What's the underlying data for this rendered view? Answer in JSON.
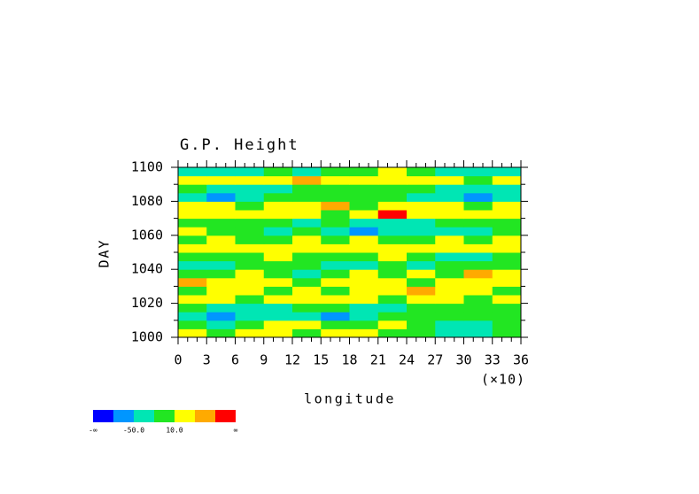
{
  "chart_data": {
    "type": "contour",
    "title": "G.P. Height",
    "xlabel": "longitude",
    "ylabel": "DAY",
    "x_multiplier_label": "(×10)",
    "xlim": [
      0,
      36
    ],
    "ylim": [
      1000,
      1100
    ],
    "xticks": [
      0,
      3,
      6,
      9,
      12,
      15,
      18,
      21,
      24,
      27,
      30,
      33,
      36
    ],
    "yticks": [
      1000,
      1020,
      1040,
      1060,
      1080,
      1100
    ],
    "x": [
      1.5,
      4.5,
      7.5,
      10.5,
      13.5,
      16.5,
      19.5,
      22.5,
      25.5,
      28.5,
      31.5,
      34.5
    ],
    "y": [
      1002.5,
      1007.5,
      1012.5,
      1017.5,
      1022.5,
      1027.5,
      1032.5,
      1037.5,
      1042.5,
      1047.5,
      1052.5,
      1057.5,
      1062.5,
      1067.5,
      1072.5,
      1077.5,
      1082.5,
      1087.5,
      1092.5,
      1097.5
    ],
    "z": [
      [
        15,
        -5,
        20,
        25,
        -5,
        15,
        20,
        -10,
        -5,
        -30,
        -40,
        -20
      ],
      [
        -5,
        -30,
        -10,
        15,
        20,
        -5,
        -10,
        15,
        -5,
        -25,
        -35,
        -5
      ],
      [
        -40,
        -55,
        -35,
        -30,
        -45,
        -60,
        -35,
        -5,
        -10,
        5,
        -5,
        -20
      ],
      [
        -10,
        -25,
        -35,
        -40,
        -20,
        -5,
        -30,
        -40,
        -15,
        -5,
        -10,
        5
      ],
      [
        20,
        15,
        -5,
        25,
        30,
        20,
        15,
        -5,
        20,
        25,
        -5,
        15
      ],
      [
        -5,
        20,
        25,
        -5,
        15,
        -10,
        20,
        25,
        45,
        15,
        20,
        -5
      ],
      [
        55,
        25,
        20,
        30,
        -5,
        15,
        25,
        20,
        -5,
        20,
        30,
        25
      ],
      [
        -10,
        -5,
        20,
        -15,
        -25,
        -5,
        20,
        -10,
        15,
        -5,
        55,
        20
      ],
      [
        -30,
        -40,
        -20,
        -5,
        -10,
        -35,
        -25,
        -5,
        -30,
        -20,
        -5,
        -10
      ],
      [
        -5,
        -20,
        -5,
        15,
        -5,
        -10,
        -5,
        20,
        -15,
        -30,
        -35,
        -20
      ],
      [
        20,
        25,
        15,
        30,
        20,
        25,
        15,
        35,
        20,
        25,
        30,
        15
      ],
      [
        -5,
        20,
        -10,
        -5,
        25,
        -5,
        20,
        -10,
        -5,
        15,
        -5,
        20
      ],
      [
        15,
        -5,
        -20,
        -30,
        -10,
        -45,
        -55,
        -40,
        -30,
        -25,
        -35,
        -10
      ],
      [
        -5,
        -10,
        -5,
        -15,
        -35,
        -20,
        -30,
        -45,
        -35,
        -20,
        -10,
        -5
      ],
      [
        25,
        20,
        15,
        30,
        25,
        -5,
        35,
        80,
        30,
        20,
        25,
        15
      ],
      [
        20,
        30,
        -5,
        20,
        25,
        40,
        -5,
        20,
        15,
        30,
        -10,
        20
      ],
      [
        -45,
        -60,
        -35,
        -10,
        -5,
        -20,
        -5,
        -10,
        -25,
        -30,
        -55,
        -40
      ],
      [
        -20,
        -35,
        -30,
        -25,
        -5,
        -15,
        -20,
        -5,
        -10,
        -35,
        -45,
        -30
      ],
      [
        20,
        15,
        25,
        30,
        55,
        20,
        25,
        30,
        15,
        20,
        -5,
        20
      ],
      [
        -30,
        -35,
        -25,
        -20,
        -30,
        -10,
        -20,
        15,
        -5,
        -30,
        -35,
        -25
      ]
    ],
    "colorbar": {
      "colors": [
        "#0000ff",
        "#0096ff",
        "#00e6b4",
        "#22e622",
        "#ffff00",
        "#ffaa00",
        "#ff0000"
      ],
      "levels": [
        -80,
        -50,
        -20,
        10,
        40,
        70
      ],
      "tick_labels": [
        {
          "label": "-∞"
        },
        {
          "value": -50,
          "label": "-50.0"
        },
        {
          "value": 10,
          "label": "10.0"
        },
        {
          "label": "∞"
        }
      ]
    }
  }
}
